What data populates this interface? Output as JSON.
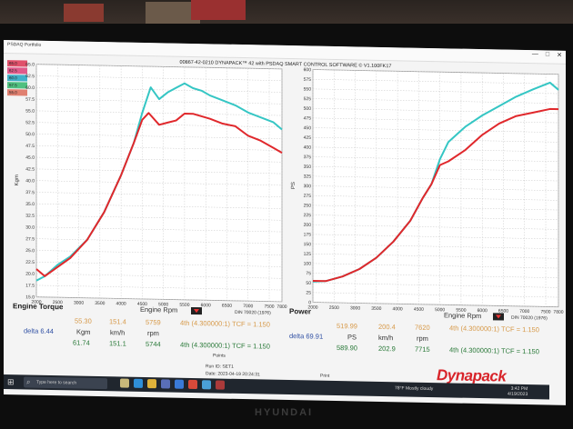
{
  "window": {
    "app_name": "PSDAQ Portfolio",
    "software_title": "00867-42-0210 DYNAPACK™ 42 with PSDAQ SMART CONTROL SOFTWARE © V1.100FK17",
    "controls": [
      "—",
      "□",
      "✕"
    ]
  },
  "legend_swatches": [
    {
      "label": "65.0",
      "color": "#e0506a"
    },
    {
      "label": "62.5",
      "color": "#e05a8a"
    },
    {
      "label": "60.0",
      "color": "#3fb0c8"
    },
    {
      "label": "57.5",
      "color": "#50c080"
    },
    {
      "label": "55.0",
      "color": "#e08070"
    }
  ],
  "colors": {
    "cyan": "#35c6c4",
    "red": "#e0282c",
    "grid": "#c8c8c8"
  },
  "chart_data": [
    {
      "type": "line",
      "title": "Engine Torque",
      "ylabel": "Kgm",
      "xlim": [
        2000,
        7800
      ],
      "ylim": [
        15.0,
        65.0
      ],
      "xticks": [
        2000,
        2500,
        3000,
        3500,
        4000,
        4500,
        5000,
        5500,
        6000,
        6500,
        7000,
        7500,
        7800
      ],
      "yticks": [
        15.0,
        17.5,
        20.0,
        22.5,
        25.0,
        27.5,
        30.0,
        32.5,
        35.0,
        37.5,
        40.0,
        42.5,
        45.0,
        47.5,
        50.0,
        52.5,
        55.0,
        57.5,
        60.0,
        62.5,
        65.0
      ],
      "xtick_labels": [
        "2000",
        "2500",
        "3000",
        "3500",
        "4000",
        "4500",
        "5000",
        "5500",
        "6000",
        "6500",
        "7000",
        "7500",
        "7800"
      ],
      "ytick_labels": [
        "15.0",
        "17.5",
        "20.0",
        "22.5",
        "25.0",
        "27.5",
        "30.0",
        "32.5",
        "35.0",
        "37.5",
        "40.0",
        "42.5",
        "45.0",
        "47.5",
        "50.0",
        "52.5",
        "55.0",
        "57.5",
        "60.0",
        "62.5",
        "65.0"
      ],
      "series": [
        {
          "color": "#35c6c4",
          "x": [
            2000,
            2200,
            2500,
            2800,
            3200,
            3600,
            4000,
            4300,
            4500,
            4700,
            4900,
            5100,
            5300,
            5500,
            5700,
            5900,
            6100,
            6400,
            6700,
            7000,
            7300,
            7600,
            7800
          ],
          "y": [
            18.5,
            19.5,
            22.0,
            23.8,
            27.5,
            33.5,
            41.5,
            48.5,
            55.0,
            60.5,
            58.0,
            59.5,
            60.5,
            61.5,
            60.5,
            60.0,
            59.0,
            58.0,
            57.0,
            55.5,
            54.5,
            53.5,
            52.0
          ]
        },
        {
          "color": "#e0282c",
          "x": [
            2000,
            2200,
            2500,
            2800,
            3200,
            3600,
            4000,
            4300,
            4500,
            4650,
            4900,
            5100,
            5300,
            5500,
            5700,
            5900,
            6100,
            6400,
            6700,
            7000,
            7300,
            7600,
            7800
          ],
          "y": [
            21.0,
            19.5,
            21.5,
            23.5,
            27.5,
            33.5,
            41.5,
            48.5,
            53.5,
            55.0,
            52.5,
            53.0,
            53.5,
            55.0,
            55.0,
            54.5,
            54.0,
            53.0,
            52.5,
            50.5,
            49.5,
            48.0,
            47.0
          ]
        }
      ]
    },
    {
      "type": "line",
      "title": "Power",
      "ylabel": "PS",
      "xlim": [
        2000,
        7800
      ],
      "ylim": [
        0,
        600
      ],
      "xticks": [
        2000,
        2500,
        3000,
        3500,
        4000,
        4500,
        5000,
        5500,
        6000,
        6500,
        7000,
        7500,
        7800
      ],
      "yticks": [
        0,
        25,
        50,
        75,
        100,
        125,
        150,
        175,
        200,
        225,
        250,
        275,
        300,
        325,
        350,
        375,
        400,
        425,
        450,
        475,
        500,
        525,
        550,
        575,
        600
      ],
      "xtick_labels": [
        "2000",
        "2500",
        "3000",
        "3500",
        "4000",
        "4500",
        "5000",
        "5500",
        "6000",
        "6500",
        "7000",
        "7500",
        "7800"
      ],
      "ytick_labels": [
        "0",
        "25",
        "50",
        "75",
        "100",
        "125",
        "150",
        "175",
        "200",
        "225",
        "250",
        "275",
        "300",
        "325",
        "350",
        "375",
        "400",
        "425",
        "450",
        "475",
        "500",
        "525",
        "550",
        "575",
        "600"
      ],
      "series": [
        {
          "color": "#35c6c4",
          "x": [
            2000,
            2300,
            2700,
            3100,
            3500,
            3900,
            4300,
            4600,
            4800,
            5000,
            5200,
            5600,
            6000,
            6400,
            6800,
            7200,
            7600,
            7800
          ],
          "y": [
            53,
            55,
            68,
            88,
            118,
            160,
            215,
            275,
            310,
            375,
            420,
            460,
            490,
            515,
            540,
            560,
            578,
            560
          ]
        },
        {
          "color": "#e0282c",
          "x": [
            2000,
            2300,
            2700,
            3100,
            3500,
            3900,
            4300,
            4600,
            4800,
            5000,
            5200,
            5600,
            6000,
            6400,
            6800,
            7200,
            7600,
            7800
          ],
          "y": [
            55,
            55,
            68,
            88,
            118,
            160,
            215,
            275,
            310,
            360,
            370,
            400,
            440,
            470,
            490,
            500,
            510,
            510
          ]
        }
      ]
    }
  ],
  "torque_readout": {
    "title": "Engine Torque",
    "rpm_label": "Engine Rpm",
    "din": "DIN 70020 (1976)",
    "row1": {
      "v1": "55.30",
      "v2": "151.4",
      "v3": "5759",
      "gear": "4th (4.300000:1) TCF = 1.150"
    },
    "delta": "delta 6.44",
    "units": {
      "u1": "Kgm",
      "u2": "km/h",
      "u3": "rpm"
    },
    "row2": {
      "v1": "61.74",
      "v2": "151.1",
      "v3": "5744",
      "gear": "4th (4.300000:1) TCF = 1.150"
    }
  },
  "power_readout": {
    "title": "Power",
    "rpm_label": "Engine Rpm",
    "din": "DIN 70020 (1976)",
    "row1": {
      "v1": "519.99",
      "v2": "200.4",
      "v3": "7620",
      "gear": "4th (4.300000:1) TCF = 1.150"
    },
    "delta": "delta 69.91",
    "units": {
      "u1": "PS",
      "u2": "km/h",
      "u3": "rpm"
    },
    "row2": {
      "v1": "589.90",
      "v2": "202.9",
      "v3": "7715",
      "gear": "4th (4.300000:1) TCF = 1.150"
    }
  },
  "footer": {
    "label": "Points",
    "run": "Run ID: SET1",
    "date": "Date: 2023-04-19 20:24:31",
    "file_name": "Print"
  },
  "logo_text": "Dynapack",
  "taskbar": {
    "start_icon": "windows-icon",
    "search_placeholder": "Type here to search",
    "weather": "78°F  Mostly cloudy",
    "time": "3:42 PM",
    "date": "4/19/2023"
  },
  "monitor_brand": "HYUNDAI"
}
